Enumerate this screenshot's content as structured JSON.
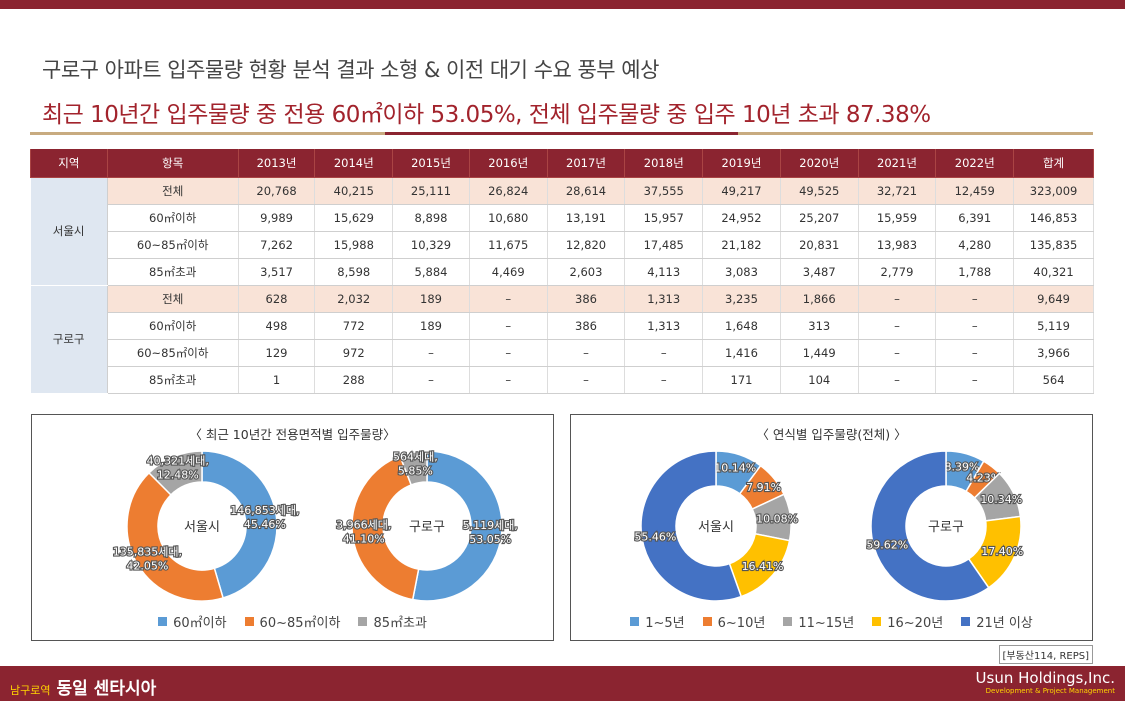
{
  "header": {
    "title": "구로구 아파트 입주물량 현황 분석 결과 소형 & 이전 대기 수요 풍부 예상",
    "subtitle": "최근 10년간 입주물량 중 전용 60㎡이하 53.05%, 전체 입주물량 중 입주 10년 초과 87.38%"
  },
  "table": {
    "headers": [
      "지역",
      "항목",
      "2013년",
      "2014년",
      "2015년",
      "2016년",
      "2017년",
      "2018년",
      "2019년",
      "2020년",
      "2021년",
      "2022년",
      "합계"
    ],
    "groups": [
      {
        "region": "서울시",
        "rows": [
          {
            "item": "전체",
            "values": [
              "20,768",
              "40,215",
              "25,111",
              "26,824",
              "28,614",
              "37,555",
              "49,217",
              "49,525",
              "32,721",
              "12,459",
              "323,009"
            ]
          },
          {
            "item": "60㎡이하",
            "values": [
              "9,989",
              "15,629",
              "8,898",
              "10,680",
              "13,191",
              "15,957",
              "24,952",
              "25,207",
              "15,959",
              "6,391",
              "146,853"
            ]
          },
          {
            "item": "60~85㎡이하",
            "values": [
              "7,262",
              "15,988",
              "10,329",
              "11,675",
              "12,820",
              "17,485",
              "21,182",
              "20,831",
              "13,983",
              "4,280",
              "135,835"
            ]
          },
          {
            "item": "85㎡초과",
            "values": [
              "3,517",
              "8,598",
              "5,884",
              "4,469",
              "2,603",
              "4,113",
              "3,083",
              "3,487",
              "2,779",
              "1,788",
              "40,321"
            ]
          }
        ]
      },
      {
        "region": "구로구",
        "rows": [
          {
            "item": "전체",
            "values": [
              "628",
              "2,032",
              "189",
              "–",
              "386",
              "1,313",
              "3,235",
              "1,866",
              "–",
              "–",
              "9,649"
            ]
          },
          {
            "item": "60㎡이하",
            "values": [
              "498",
              "772",
              "189",
              "–",
              "386",
              "1,313",
              "1,648",
              "313",
              "–",
              "–",
              "5,119"
            ]
          },
          {
            "item": "60~85㎡이하",
            "values": [
              "129",
              "972",
              "–",
              "–",
              "–",
              "–",
              "1,416",
              "1,449",
              "–",
              "–",
              "3,966"
            ]
          },
          {
            "item": "85㎡초과",
            "values": [
              "1",
              "288",
              "–",
              "–",
              "–",
              "–",
              "171",
              "104",
              "–",
              "–",
              "564"
            ]
          }
        ]
      }
    ]
  },
  "chart_data": [
    {
      "type": "pie",
      "variant": "donut",
      "title": "〈 최근 10년간 전용면적별 입주물량〉",
      "categories": [
        "60㎡이하",
        "60~85㎡이하",
        "85㎡초과"
      ],
      "colors": [
        "#5b9bd5",
        "#ed7d31",
        "#a5a5a5"
      ],
      "donuts": [
        {
          "name": "서울시",
          "values": [
            45.46,
            42.05,
            12.48
          ],
          "labels": [
            [
              "146,853세대,",
              "45.46%"
            ],
            [
              "135,835세대,",
              "42.05%"
            ],
            [
              "40,321세대,",
              "12.48%"
            ]
          ]
        },
        {
          "name": "구로구",
          "values": [
            53.05,
            41.1,
            5.85
          ],
          "labels": [
            [
              "5,119세대,",
              "53.05%"
            ],
            [
              "3,966세대,",
              "41.10%"
            ],
            [
              "564세대,",
              "5.85%"
            ]
          ]
        }
      ]
    },
    {
      "type": "pie",
      "variant": "donut",
      "title": "〈 연식별 입주물량(전체) 〉",
      "categories": [
        "1~5년",
        "6~10년",
        "11~15년",
        "16~20년",
        "21년 이상"
      ],
      "colors": [
        "#5b9bd5",
        "#ed7d31",
        "#a5a5a5",
        "#ffc000",
        "#4472c4"
      ],
      "donuts": [
        {
          "name": "서울시",
          "values": [
            10.14,
            7.91,
            10.08,
            16.41,
            55.46
          ],
          "labels": [
            [
              "10.14%"
            ],
            [
              "7.91%"
            ],
            [
              "10.08%"
            ],
            [
              "16.41%"
            ],
            [
              "55.46%"
            ]
          ]
        },
        {
          "name": "구로구",
          "values": [
            8.39,
            4.23,
            10.34,
            17.4,
            59.62
          ],
          "labels": [
            [
              "8.39%"
            ],
            [
              "4.23%"
            ],
            [
              "10.34%"
            ],
            [
              "17.40%"
            ],
            [
              "59.62%"
            ]
          ]
        }
      ]
    }
  ],
  "source": "[부동산114, REPS]",
  "footer": {
    "sub": "남구로역",
    "main": "동일 센타시아",
    "company": "Usun Holdings,Inc.",
    "tagline": "Development & Project Management"
  }
}
